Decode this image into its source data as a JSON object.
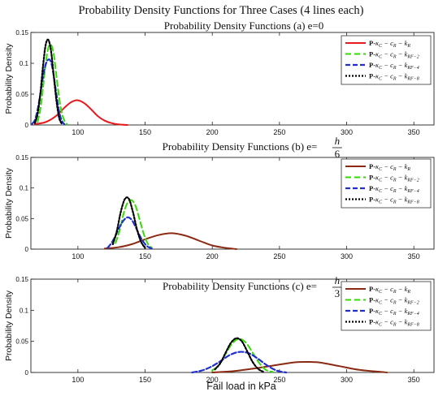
{
  "figure_title": "Probability Density Functions for Three Cases (4 lines each)",
  "shared_xlabel": "Fail load in kPa",
  "shared_ylabel": "Probability Density",
  "legend_prefix": "P-",
  "chart_data": [
    {
      "type": "line",
      "title": "Probability Density Functions (a) e=0",
      "title_text": "Probability Density Functions (a) e=0",
      "title_fraction": null,
      "xlim": [
        65,
        365
      ],
      "ylim": [
        0,
        0.15
      ],
      "xticks": [
        100,
        150,
        200,
        250,
        300,
        350
      ],
      "yticks": [
        0,
        0.05,
        0.1,
        0.15
      ],
      "ytick_labels": [
        "0",
        "0.05",
        "0.1",
        "0.15"
      ],
      "legend_position": "top-right",
      "series": [
        {
          "name": "κC − cR − kR",
          "sub": "R",
          "color": "#e41a1c",
          "dash": "solid",
          "width": 2,
          "x": [
            68,
            70,
            75,
            80,
            85,
            90,
            95,
            100,
            105,
            110,
            115,
            120,
            125,
            130,
            137
          ],
          "y": [
            0.001,
            0.002,
            0.004,
            0.009,
            0.017,
            0.028,
            0.037,
            0.04,
            0.035,
            0.025,
            0.014,
            0.007,
            0.003,
            0.001,
            0.0
          ]
        },
        {
          "name": "κC − cR − kRF−2",
          "sub": "RF−2",
          "color": "#33dd00",
          "dash": "7,4",
          "width": 2,
          "x": [
            70,
            72,
            74,
            76,
            78,
            80,
            82,
            84,
            86,
            88,
            90,
            92
          ],
          "y": [
            0.005,
            0.025,
            0.06,
            0.1,
            0.125,
            0.13,
            0.115,
            0.08,
            0.045,
            0.02,
            0.007,
            0.001
          ]
        },
        {
          "name": "κC − cR − kRF−4",
          "sub": "RF−4",
          "color": "#1f2fcf",
          "dash": "6,3",
          "width": 2.2,
          "x": [
            66,
            68,
            70,
            72,
            74,
            76,
            78,
            80,
            82,
            84,
            86,
            88,
            90
          ],
          "y": [
            0.002,
            0.008,
            0.025,
            0.05,
            0.078,
            0.098,
            0.106,
            0.102,
            0.08,
            0.05,
            0.022,
            0.007,
            0.001
          ]
        },
        {
          "name": "κC − cR − kRF−8",
          "sub": "RF−8",
          "color": "#000000",
          "dash": "2,2",
          "width": 2.2,
          "x": [
            68,
            70,
            72,
            74,
            76,
            78,
            80,
            82,
            84,
            86,
            88
          ],
          "y": [
            0.003,
            0.018,
            0.05,
            0.095,
            0.13,
            0.138,
            0.12,
            0.08,
            0.04,
            0.012,
            0.002
          ]
        }
      ]
    },
    {
      "type": "line",
      "title": "Probability Density Functions (b) e=h/6",
      "title_text": "Probability Density Functions (b) e=",
      "title_fraction": [
        "h",
        "6"
      ],
      "xlim": [
        65,
        365
      ],
      "ylim": [
        0,
        0.15
      ],
      "xticks": [
        100,
        150,
        200,
        250,
        300,
        350
      ],
      "yticks": [
        0,
        0.05,
        0.1,
        0.15
      ],
      "ytick_labels": [
        "0",
        "0.05",
        "0.1",
        "0.15"
      ],
      "legend_position": "top-right",
      "series": [
        {
          "name": "κC − cR − kR",
          "sub": "R",
          "color": "#8b2a12",
          "dash": "solid",
          "width": 2,
          "x": [
            120,
            130,
            140,
            150,
            160,
            170,
            180,
            190,
            200,
            210,
            218
          ],
          "y": [
            0.001,
            0.003,
            0.008,
            0.016,
            0.023,
            0.026,
            0.022,
            0.014,
            0.006,
            0.002,
            0.0
          ]
        },
        {
          "name": "κC − cR − kRF−2",
          "sub": "RF−2",
          "color": "#33dd00",
          "dash": "7,4",
          "width": 2,
          "x": [
            128,
            131,
            134,
            137,
            140,
            143,
            146,
            149,
            152,
            155
          ],
          "y": [
            0.01,
            0.03,
            0.058,
            0.076,
            0.08,
            0.07,
            0.048,
            0.025,
            0.009,
            0.002
          ]
        },
        {
          "name": "κC − cR − kRF−4",
          "sub": "RF−4",
          "color": "#1f2fcf",
          "dash": "6,3",
          "width": 2.2,
          "x": [
            122,
            125,
            128,
            131,
            134,
            137,
            140,
            143,
            146,
            149,
            152,
            155
          ],
          "y": [
            0.002,
            0.01,
            0.022,
            0.036,
            0.047,
            0.052,
            0.048,
            0.036,
            0.022,
            0.011,
            0.004,
            0.001
          ]
        },
        {
          "name": "κC − cR − kRF−8",
          "sub": "RF−8",
          "color": "#000000",
          "dash": "2,2",
          "width": 2.2,
          "x": [
            126,
            129,
            132,
            135,
            138,
            141,
            144,
            147,
            150
          ],
          "y": [
            0.008,
            0.03,
            0.062,
            0.082,
            0.082,
            0.06,
            0.032,
            0.012,
            0.002
          ]
        }
      ]
    },
    {
      "type": "line",
      "title": "Probability Density Functions (c) e=h/3",
      "title_text": "Probability Density Functions (c) e=",
      "title_fraction": [
        "h",
        "3"
      ],
      "xlim": [
        65,
        365
      ],
      "ylim": [
        0,
        0.15
      ],
      "xticks": [
        100,
        150,
        200,
        250,
        300,
        350
      ],
      "yticks": [
        0,
        0.05,
        0.1,
        0.15
      ],
      "ytick_labels": [
        "0",
        "0.05",
        "0.1",
        "0.15"
      ],
      "legend_position": "top-right",
      "series": [
        {
          "name": "κC − cR − kR",
          "sub": "R",
          "color": "#8b2a12",
          "dash": "solid",
          "width": 2,
          "x": [
            200,
            215,
            230,
            245,
            260,
            270,
            280,
            295,
            310,
            325,
            330
          ],
          "y": [
            0.0,
            0.002,
            0.006,
            0.011,
            0.016,
            0.017,
            0.016,
            0.01,
            0.004,
            0.001,
            0.0
          ]
        },
        {
          "name": "κC − cR − kRF−2",
          "sub": "RF−2",
          "color": "#33dd00",
          "dash": "7,4",
          "width": 2,
          "x": [
            200,
            205,
            210,
            215,
            220,
            225,
            230,
            235,
            240,
            245
          ],
          "y": [
            0.003,
            0.012,
            0.03,
            0.047,
            0.054,
            0.048,
            0.032,
            0.015,
            0.004,
            0.001
          ]
        },
        {
          "name": "κC − cR − kRF−4",
          "sub": "RF−4",
          "color": "#1f2fcf",
          "dash": "6,3",
          "width": 2.2,
          "x": [
            185,
            192,
            199,
            206,
            213,
            220,
            227,
            234,
            241,
            248,
            255
          ],
          "y": [
            0.0,
            0.003,
            0.009,
            0.018,
            0.028,
            0.033,
            0.031,
            0.022,
            0.011,
            0.003,
            0.0
          ]
        },
        {
          "name": "κC − cR − kRF−8",
          "sub": "RF−8",
          "color": "#000000",
          "dash": "2,2",
          "width": 2.2,
          "x": [
            202,
            206,
            210,
            214,
            218,
            222,
            226,
            230,
            234,
            238
          ],
          "y": [
            0.005,
            0.015,
            0.032,
            0.048,
            0.055,
            0.05,
            0.034,
            0.017,
            0.006,
            0.001
          ]
        }
      ]
    }
  ]
}
